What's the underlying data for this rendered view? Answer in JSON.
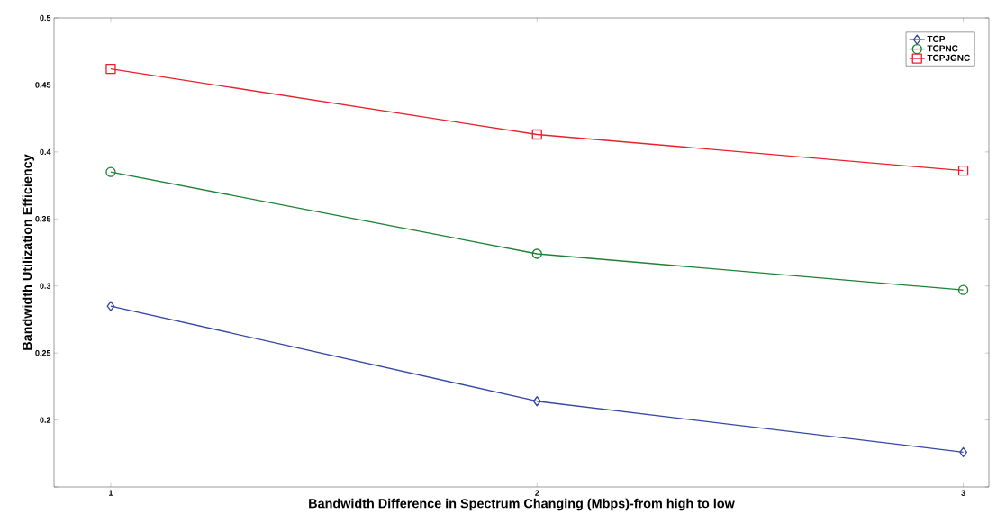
{
  "chart_data": {
    "type": "line",
    "xlabel": "Bandwidth Difference in Spectrum Changing (Mbps)-from high to low",
    "ylabel": "Bandwidth Utilization Efficiency",
    "x": [
      1,
      2,
      3
    ],
    "xlim": [
      0.867,
      3.06
    ],
    "xticks": [
      1,
      2,
      3
    ],
    "ylim": [
      0.15,
      0.5
    ],
    "yticks": [
      {
        "value": 0.15,
        "label": null
      },
      0.2,
      0.25,
      0.3,
      0.35,
      0.4,
      0.45,
      0.5
    ],
    "legend": "top right",
    "series": [
      {
        "name": "TCP",
        "color": "#3447a4",
        "marker": "diamond",
        "values": [
          0.285,
          0.214,
          0.176
        ]
      },
      {
        "name": "TCPNC",
        "color": "#1e8034",
        "marker": "circle",
        "values": [
          0.385,
          0.324,
          0.297
        ]
      },
      {
        "name": "TCPJGNC",
        "color": "#e8202a",
        "marker": "square",
        "values": [
          0.462,
          0.413,
          0.386
        ]
      }
    ]
  }
}
